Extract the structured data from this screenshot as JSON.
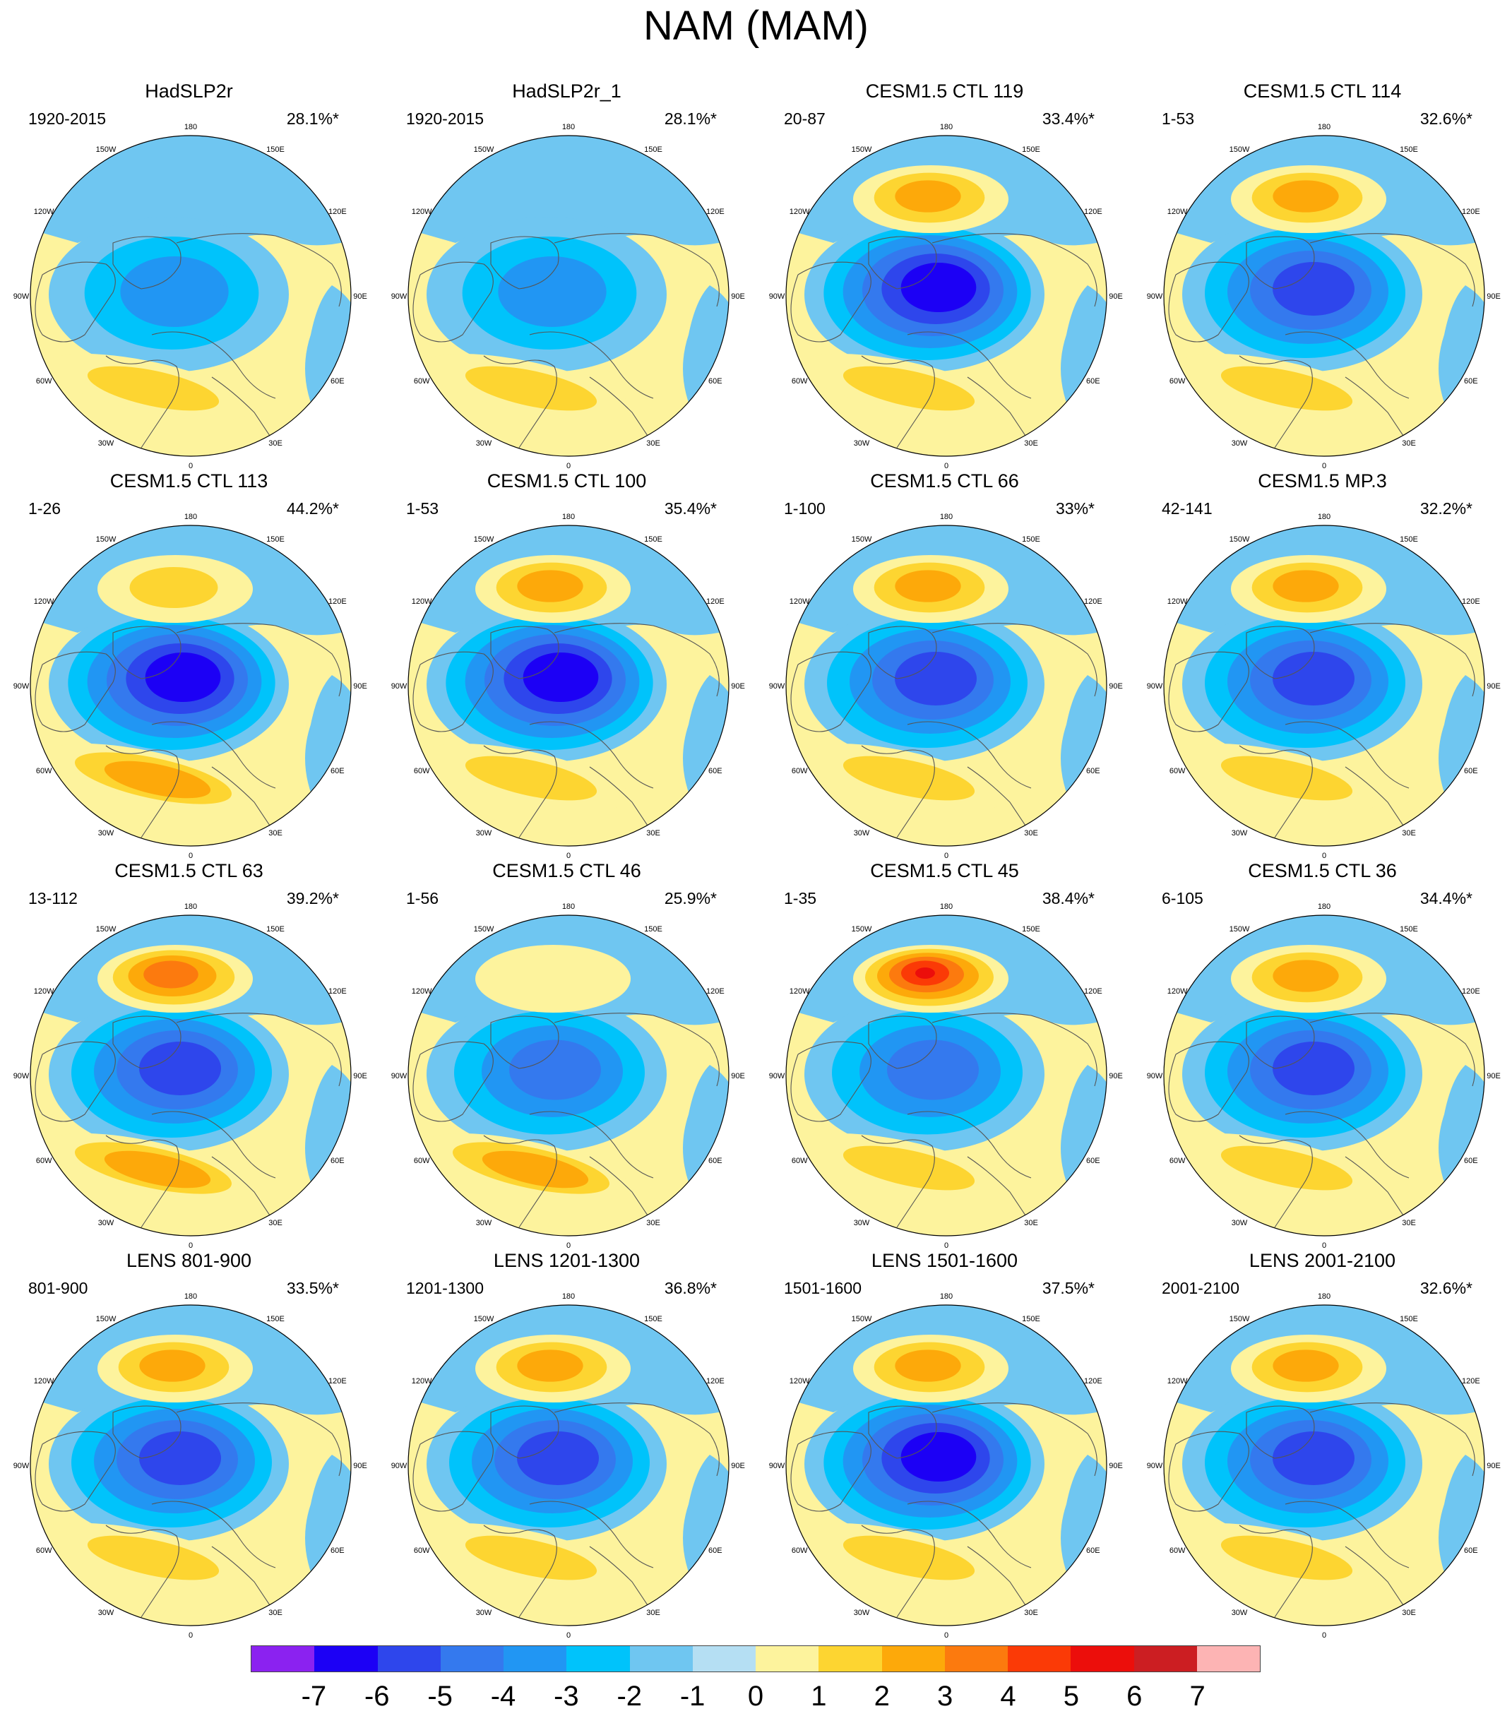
{
  "title": "NAM (MAM)",
  "lon_labels": {
    "n": "180",
    "nnw": "150W",
    "nne": "150E",
    "wnw": "120W",
    "ene": "120E",
    "w": "90W",
    "e": "90E",
    "wsw": "60W",
    "ese": "60E",
    "ssw": "30W",
    "sse": "30E",
    "s": "0"
  },
  "panels": [
    {
      "title": "HadSLP2r",
      "range": "1920-2015",
      "variance": "28.1%*",
      "min": -3,
      "pac": 0,
      "atl": 2,
      "pac_extra": 0
    },
    {
      "title": "HadSLP2r_1",
      "range": "1920-2015",
      "variance": "28.1%*",
      "min": -3,
      "pac": 0,
      "atl": 2,
      "pac_extra": 0
    },
    {
      "title": "CESM1.5 CTL 119",
      "range": "20-87",
      "variance": "33.4%*",
      "min": -6,
      "pac": 3,
      "atl": 2,
      "pac_extra": 0
    },
    {
      "title": "CESM1.5 CTL 114",
      "range": "1-53",
      "variance": "32.6%*",
      "min": -5,
      "pac": 3,
      "atl": 2,
      "pac_extra": 0
    },
    {
      "title": "CESM1.5 CTL 113",
      "range": "1-26",
      "variance": "44.2%*",
      "min": -6,
      "pac": 2,
      "atl": 3,
      "pac_extra": 0
    },
    {
      "title": "CESM1.5 CTL 100",
      "range": "1-53",
      "variance": "35.4%*",
      "min": -6,
      "pac": 3,
      "atl": 2,
      "pac_extra": 0
    },
    {
      "title": "CESM1.5 CTL 66",
      "range": "1-100",
      "variance": "33%*",
      "min": -5,
      "pac": 3,
      "atl": 2,
      "pac_extra": 0
    },
    {
      "title": "CESM1.5 MP.3",
      "range": "42-141",
      "variance": "32.2%*",
      "min": -5,
      "pac": 3,
      "atl": 2,
      "pac_extra": 0
    },
    {
      "title": "CESM1.5 CTL 63",
      "range": "13-112",
      "variance": "39.2%*",
      "min": -5,
      "pac": 4,
      "atl": 3,
      "pac_extra": 0
    },
    {
      "title": "CESM1.5 CTL 46",
      "range": "1-56",
      "variance": "25.9%*",
      "min": -4,
      "pac": 1,
      "atl": 3,
      "pac_extra": 0
    },
    {
      "title": "CESM1.5 CTL 45",
      "range": "1-35",
      "variance": "38.4%*",
      "min": -4,
      "pac": 5,
      "atl": 2,
      "pac_extra": 1
    },
    {
      "title": "CESM1.5 CTL 36",
      "range": "6-105",
      "variance": "34.4%*",
      "min": -5,
      "pac": 3,
      "atl": 2,
      "pac_extra": 0
    },
    {
      "title": "LENS 801-900",
      "range": "801-900",
      "variance": "33.5%*",
      "min": -5,
      "pac": 3,
      "atl": 2,
      "pac_extra": 0
    },
    {
      "title": "LENS 1201-1300",
      "range": "1201-1300",
      "variance": "36.8%*",
      "min": -5,
      "pac": 3,
      "atl": 2,
      "pac_extra": 0
    },
    {
      "title": "LENS 1501-1600",
      "range": "1501-1600",
      "variance": "37.5%*",
      "min": -6,
      "pac": 3,
      "atl": 2,
      "pac_extra": 0
    },
    {
      "title": "LENS 2001-2100",
      "range": "2001-2100",
      "variance": "32.6%*",
      "min": -5,
      "pac": 3,
      "atl": 2,
      "pac_extra": 0
    }
  ],
  "colorbar": {
    "colors": [
      "#8b22f0",
      "#1c00f5",
      "#2e46ec",
      "#3479ee",
      "#2196f3",
      "#00c3fb",
      "#6fc6f1",
      "#b5dff3",
      "#fdf39d",
      "#fdd531",
      "#fda90a",
      "#fc7a0e",
      "#fb3a06",
      "#ec0e0b",
      "#cc1e22",
      "#fdb4b4"
    ],
    "labels": [
      "-7",
      "-6",
      "-5",
      "-4",
      "-3",
      "-2",
      "-1",
      "0",
      "1",
      "2",
      "3",
      "4",
      "5",
      "6",
      "7"
    ]
  }
}
